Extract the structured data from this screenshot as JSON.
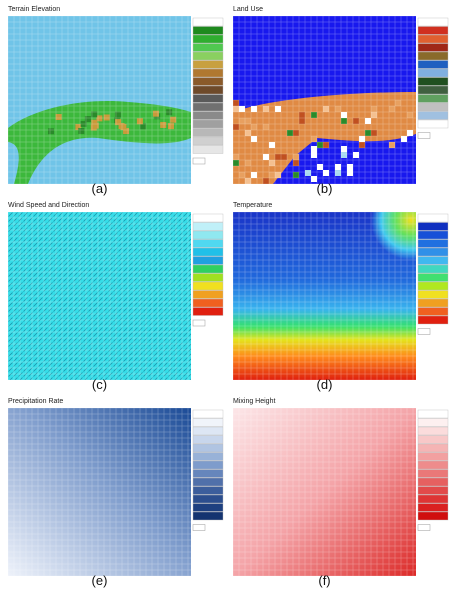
{
  "panels": [
    {
      "title": "Terrain Elevation",
      "caption": "(a)"
    },
    {
      "title": "Land Use",
      "caption": "(b)"
    },
    {
      "title": "Wind Speed and Direction",
      "caption": "(c)"
    },
    {
      "title": "Temperature",
      "caption": "(d)"
    },
    {
      "title": "Precipitation Rate",
      "caption": "(e)"
    },
    {
      "title": "Mixing Height",
      "caption": "(f)"
    }
  ]
}
